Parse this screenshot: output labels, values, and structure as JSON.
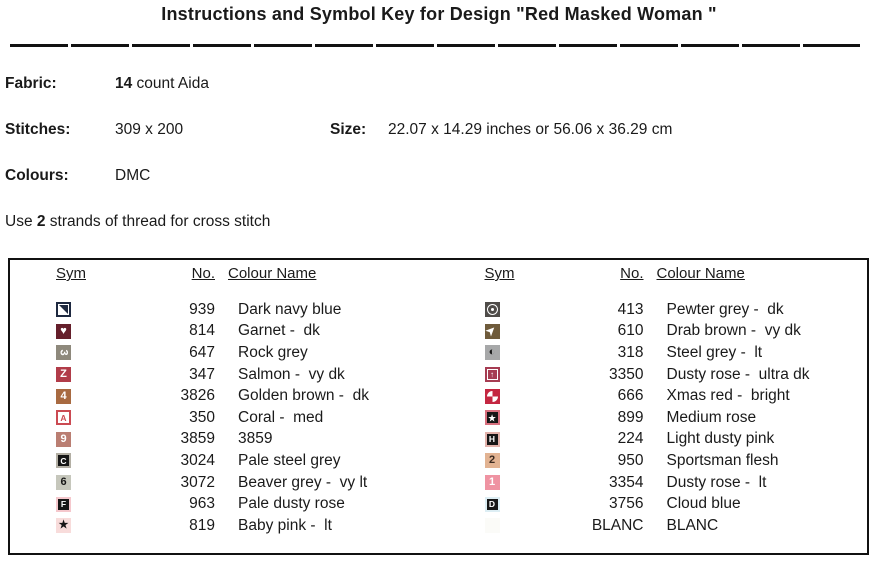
{
  "title": "Instructions and Symbol Key for Design \"Red Masked Woman \"",
  "info": {
    "fabric_label": "Fabric:",
    "fabric_bold": "14",
    "fabric_rest": " count Aida",
    "stitches_label": "Stitches:",
    "stitches_value": "309 x 200",
    "size_label": "Size:",
    "size_value": "22.07 x 14.29 inches or 56.06 x 36.29 cm",
    "colours_label": "Colours:",
    "colours_value": "DMC",
    "strands_prefix": "Use ",
    "strands_bold": "2",
    "strands_suffix": " strands of thread for cross stitch"
  },
  "table": {
    "headers": {
      "sym": "Sym",
      "no": "No.",
      "name": "Colour Name"
    },
    "left_rows": [
      {
        "no": "939",
        "name": "Dark navy blue",
        "sym": {
          "type": "diag-box",
          "icon": "diagonal-square-icon",
          "bg": "#1e2940"
        }
      },
      {
        "no": "814",
        "name": "Garnet -  dk",
        "sym": {
          "type": "text",
          "icon": "heart-icon",
          "bg": "#651f2b",
          "fg": "#ffffff",
          "char": "♥"
        }
      },
      {
        "no": "647",
        "name": "Rock grey",
        "sym": {
          "type": "text",
          "icon": "rotated-three-icon",
          "bg": "#8e897c",
          "fg": "#ffffff",
          "char": "3",
          "rotate": 90
        }
      },
      {
        "no": "347",
        "name": "Salmon -  vy dk",
        "sym": {
          "type": "text",
          "icon": "letter-z-icon",
          "bg": "#b13c49",
          "fg": "#ffffff",
          "char": "Z"
        }
      },
      {
        "no": "3826",
        "name": "Golden brown -  dk",
        "sym": {
          "type": "text",
          "icon": "digit-4-icon",
          "bg": "#a86a41",
          "fg": "#ffffff",
          "char": "4"
        }
      },
      {
        "no": "350",
        "name": "Coral -  med",
        "sym": {
          "type": "boxed",
          "icon": "boxed-letter-a-icon",
          "bg": "#cb4a52",
          "boxBg": "#ffffff",
          "fg": "#cb4a52",
          "char": "A"
        }
      },
      {
        "no": "3859",
        "name": "3859",
        "sym": {
          "type": "text",
          "icon": "digit-9-icon",
          "bg": "#ba7e72",
          "fg": "#ffffff",
          "char": "9"
        }
      },
      {
        "no": "3024",
        "name": "Pale steel grey",
        "sym": {
          "type": "boxed",
          "icon": "boxed-letter-c-icon",
          "bg": "#b3afa4",
          "boxBg": "#161616",
          "fg": "#ffffff",
          "char": "C"
        }
      },
      {
        "no": "3072",
        "name": "Beaver grey -  vy lt",
        "sym": {
          "type": "text",
          "icon": "digit-6-icon",
          "bg": "#c6c7bc",
          "fg": "#161616",
          "char": "6"
        }
      },
      {
        "no": "963",
        "name": "Pale dusty rose",
        "sym": {
          "type": "boxed",
          "icon": "boxed-letter-f-icon",
          "bg": "#f5c8cd",
          "boxBg": "#161616",
          "fg": "#ffffff",
          "char": "F"
        }
      },
      {
        "no": "819",
        "name": "Baby pink -  lt",
        "sym": {
          "type": "text",
          "icon": "star-icon",
          "bg": "#f8dcdb",
          "fg": "#161616",
          "char": "★"
        }
      }
    ],
    "right_rows": [
      {
        "no": "413",
        "name": "Pewter grey -  dk",
        "sym": {
          "type": "ring-dot",
          "icon": "circled-dot-icon",
          "bg": "#4f4c49"
        }
      },
      {
        "no": "610",
        "name": "Drab brown -  vy dk",
        "sym": {
          "type": "text",
          "icon": "arrow-pointer-icon",
          "bg": "#6f5b3b",
          "fg": "#ffffff",
          "char": "➤",
          "rotate": -45
        }
      },
      {
        "no": "318",
        "name": "Steel grey -  lt",
        "sym": {
          "type": "text",
          "icon": "half-circle-icon",
          "bg": "#a7a8a9",
          "fg": "#161616",
          "char": "◐"
        }
      },
      {
        "no": "3350",
        "name": "Dusty rose -  ultra dk",
        "sym": {
          "type": "outline-arrow",
          "icon": "boxed-up-arrow-icon",
          "bg": "#a63c52",
          "fg": "#ffffff",
          "char": "↑"
        }
      },
      {
        "no": "666",
        "name": "Xmas red -  bright",
        "sym": {
          "type": "quad-circle",
          "icon": "quartered-circle-icon",
          "bg": "#c42741",
          "fg": "#ffffff"
        }
      },
      {
        "no": "899",
        "name": "Medium rose",
        "sym": {
          "type": "boxed",
          "icon": "boxed-star-icon",
          "bg": "#d8707e",
          "boxBg": "#161616",
          "fg": "#ffffff",
          "char": "★"
        }
      },
      {
        "no": "224",
        "name": "Light dusty pink",
        "sym": {
          "type": "boxed",
          "icon": "boxed-letter-h-icon",
          "bg": "#e2b2ab",
          "boxBg": "#161616",
          "fg": "#ffffff",
          "char": "H"
        }
      },
      {
        "no": "950",
        "name": "Sportsman flesh",
        "sym": {
          "type": "text",
          "icon": "digit-2-icon",
          "bg": "#e2b392",
          "fg": "#3a2a20",
          "char": "2"
        }
      },
      {
        "no": "3354",
        "name": "Dusty rose -  lt",
        "sym": {
          "type": "text",
          "icon": "digit-1-icon",
          "bg": "#ef93a2",
          "fg": "#ffffff",
          "char": "1"
        }
      },
      {
        "no": "3756",
        "name": "Cloud blue",
        "sym": {
          "type": "boxed",
          "icon": "boxed-letter-d-icon",
          "bg": "#ddeef4",
          "boxBg": "#161616",
          "fg": "#ffffff",
          "char": "D"
        }
      },
      {
        "no": "BLANC",
        "name": "BLANC",
        "sym": {
          "type": "blank",
          "icon": "blank-swatch-icon",
          "bg": "#fbfbf8"
        }
      }
    ]
  }
}
